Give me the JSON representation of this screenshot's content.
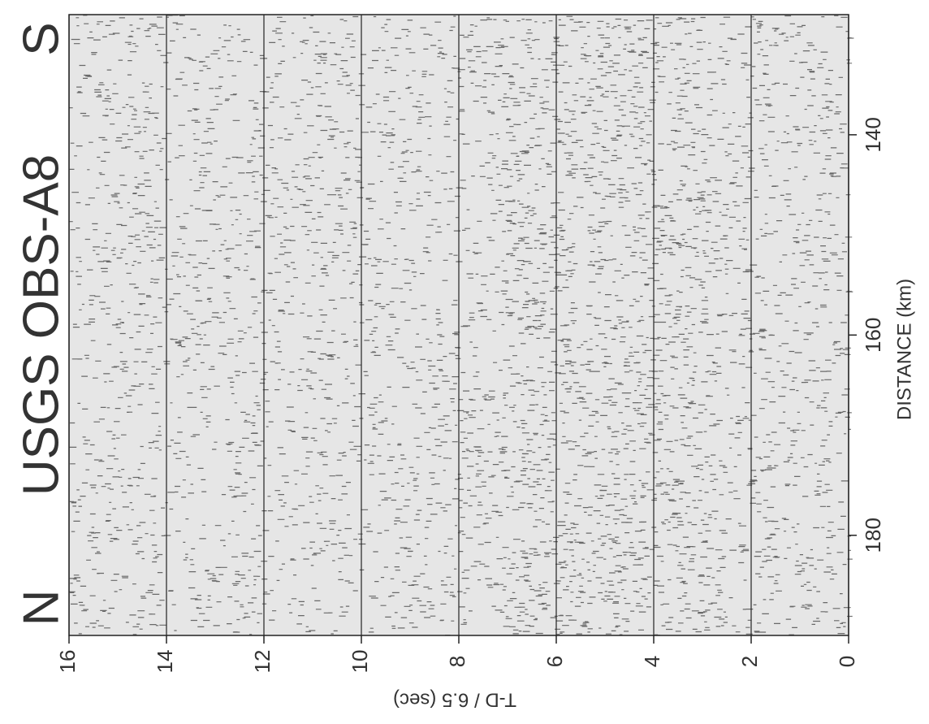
{
  "chart_data": {
    "type": "record-section",
    "title": "USGS OBS-A8",
    "start_label": "N",
    "end_label": "S",
    "xlabel": "T-D / 6.5 (sec)",
    "ylabel": "DISTANCE (km)",
    "xlim": [
      16,
      0
    ],
    "xticks": [
      16,
      14,
      12,
      10,
      8,
      6,
      4,
      2,
      0
    ],
    "ylim": [
      128,
      190
    ],
    "yticks": [
      140,
      160,
      180
    ],
    "grid": true
  }
}
